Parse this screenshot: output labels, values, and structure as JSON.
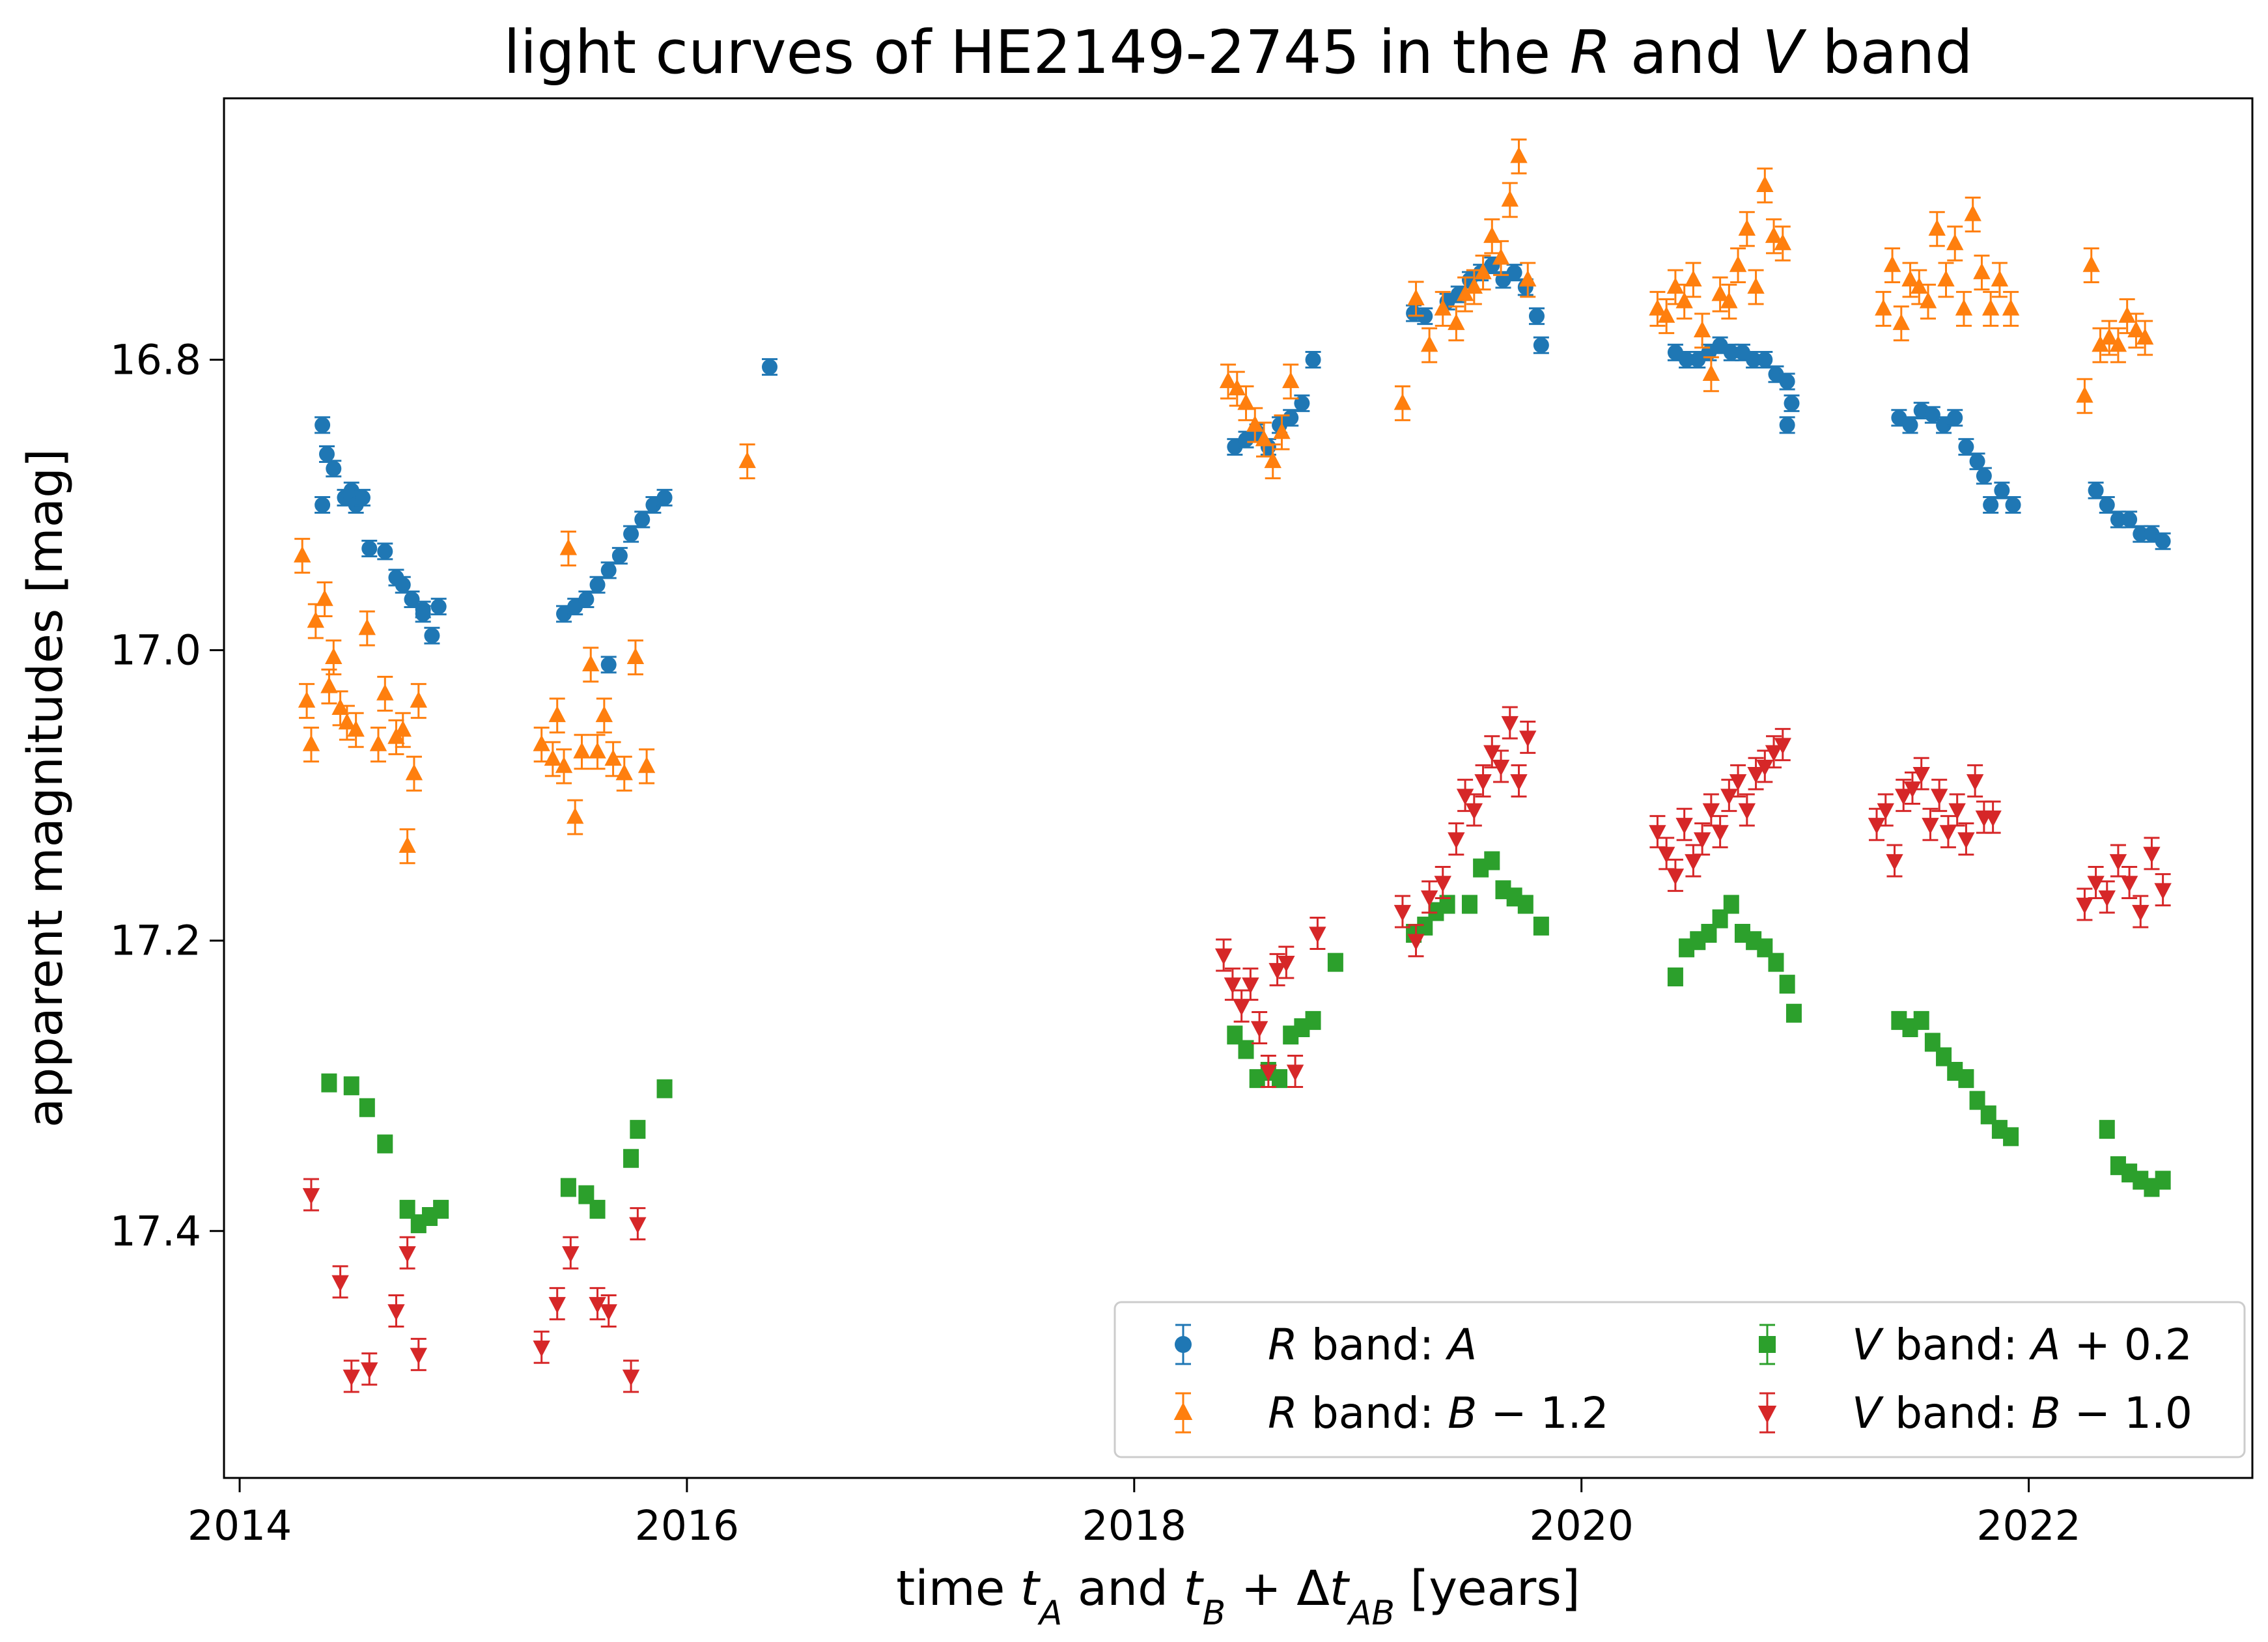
{
  "chart_data": {
    "type": "scatter",
    "title": "light curves of HE2149-2745 in the R and V band",
    "title_parts": [
      {
        "text": "light curves of HE2149-2745 in the ",
        "italic": false
      },
      {
        "text": "R",
        "italic": true
      },
      {
        "text": " and ",
        "italic": false
      },
      {
        "text": "V",
        "italic": true
      },
      {
        "text": " band",
        "italic": false
      }
    ],
    "xlabel": "time t_A and t_B + Δt_AB [years]",
    "xlabel_parts": [
      {
        "text": "time ",
        "italic": false
      },
      {
        "text": "t",
        "italic": true
      },
      {
        "text": "A",
        "italic": true,
        "sub": true
      },
      {
        "text": " and ",
        "italic": false
      },
      {
        "text": "t",
        "italic": true
      },
      {
        "text": "B",
        "italic": true,
        "sub": true
      },
      {
        "text": " + Δ",
        "italic": false
      },
      {
        "text": "t",
        "italic": true
      },
      {
        "text": "AB",
        "italic": true,
        "sub": true
      },
      {
        "text": " [years]",
        "italic": false
      }
    ],
    "ylabel": "apparent magnitudes [mag]",
    "xlim": [
      2013.93,
      2023.0
    ],
    "ylim": [
      17.57,
      16.62
    ],
    "y_inverted": true,
    "x_ticks": [
      2014,
      2016,
      2018,
      2020,
      2022
    ],
    "x_tick_labels": [
      "2014",
      "2016",
      "2018",
      "2020",
      "2022"
    ],
    "y_ticks": [
      16.8,
      17.0,
      17.2,
      17.4
    ],
    "y_tick_labels": [
      "16.8",
      "17.0",
      "17.2",
      "17.4"
    ],
    "grid": false,
    "legend_position": "lower-right",
    "legend_columns": 2,
    "series": [
      {
        "name": "R band: A",
        "name_parts": [
          {
            "text": "R",
            "italic": true
          },
          {
            "text": " band: ",
            "italic": false
          },
          {
            "text": "A",
            "italic": true
          }
        ],
        "color": "#1f77b4",
        "marker": "circle",
        "x": [
          2014.37,
          2014.39,
          2014.37,
          2014.42,
          2014.47,
          2014.5,
          2014.52,
          2014.55,
          2014.58,
          2014.65,
          2014.7,
          2014.73,
          2014.77,
          2014.82,
          2014.86,
          2014.82,
          2014.89,
          2015.45,
          2015.5,
          2015.55,
          2015.6,
          2015.65,
          2015.7,
          2015.75,
          2015.8,
          2015.65,
          2015.85,
          2015.9,
          2016.37,
          2018.45,
          2018.5,
          2018.55,
          2018.6,
          2018.65,
          2018.7,
          2018.75,
          2018.8,
          2019.25,
          2019.3,
          2019.4,
          2019.45,
          2019.5,
          2019.55,
          2019.6,
          2019.65,
          2019.7,
          2019.75,
          2019.8,
          2019.82,
          2020.42,
          2020.47,
          2020.52,
          2020.57,
          2020.62,
          2020.67,
          2020.72,
          2020.77,
          2020.82,
          2020.87,
          2020.92,
          2020.92,
          2020.94,
          2021.42,
          2021.47,
          2021.52,
          2021.57,
          2021.62,
          2021.67,
          2021.72,
          2021.77,
          2021.8,
          2021.83,
          2021.88,
          2021.93,
          2022.3,
          2022.35,
          2022.4,
          2022.45,
          2022.5,
          2022.55,
          2022.6
        ],
        "y": [
          16.845,
          16.865,
          16.9,
          16.875,
          16.895,
          16.89,
          16.9,
          16.895,
          16.93,
          16.932,
          16.95,
          16.955,
          16.965,
          16.972,
          16.99,
          16.975,
          16.97,
          16.975,
          16.97,
          16.965,
          16.955,
          16.945,
          16.935,
          16.92,
          16.91,
          17.01,
          16.9,
          16.895,
          16.805,
          16.86,
          16.855,
          16.85,
          16.86,
          16.845,
          16.84,
          16.83,
          16.8,
          16.768,
          16.77,
          16.76,
          16.755,
          16.745,
          16.74,
          16.735,
          16.745,
          16.74,
          16.75,
          16.77,
          16.79,
          16.795,
          16.8,
          16.8,
          16.795,
          16.79,
          16.795,
          16.795,
          16.8,
          16.8,
          16.81,
          16.815,
          16.845,
          16.83,
          16.84,
          16.845,
          16.835,
          16.838,
          16.845,
          16.84,
          16.86,
          16.87,
          16.88,
          16.9,
          16.89,
          16.9,
          16.89,
          16.9,
          16.91,
          16.91,
          16.92,
          16.92,
          16.925
        ]
      },
      {
        "name": "R band: B − 1.2",
        "name_parts": [
          {
            "text": "R",
            "italic": true
          },
          {
            "text": " band: ",
            "italic": false
          },
          {
            "text": "B",
            "italic": true
          },
          {
            "text": " − 1.2",
            "italic": false
          }
        ],
        "color": "#ff7f0e",
        "marker": "triangle-up",
        "x": [
          2014.28,
          2014.3,
          2014.32,
          2014.34,
          2014.38,
          2014.4,
          2014.42,
          2014.45,
          2014.48,
          2014.52,
          2014.57,
          2014.62,
          2014.65,
          2014.7,
          2014.73,
          2014.75,
          2014.78,
          2014.8,
          2015.35,
          2015.4,
          2015.42,
          2015.45,
          2015.47,
          2015.5,
          2015.53,
          2015.57,
          2015.6,
          2015.63,
          2015.67,
          2015.72,
          2015.77,
          2015.82,
          2016.27,
          2018.42,
          2018.46,
          2018.5,
          2018.54,
          2018.58,
          2018.62,
          2018.66,
          2018.7,
          2019.2,
          2019.26,
          2019.32,
          2019.38,
          2019.44,
          2019.48,
          2019.52,
          2019.56,
          2019.6,
          2019.64,
          2019.68,
          2019.72,
          2019.76,
          2020.34,
          2020.38,
          2020.42,
          2020.46,
          2020.5,
          2020.54,
          2020.58,
          2020.62,
          2020.66,
          2020.7,
          2020.74,
          2020.78,
          2020.82,
          2020.86,
          2020.9,
          2021.35,
          2021.39,
          2021.43,
          2021.47,
          2021.51,
          2021.55,
          2021.59,
          2021.63,
          2021.67,
          2021.71,
          2021.75,
          2021.79,
          2021.83,
          2021.87,
          2021.92,
          2022.25,
          2022.28,
          2022.32,
          2022.36,
          2022.4,
          2022.44,
          2022.48,
          2022.52
        ],
        "y": [
          16.935,
          17.035,
          17.065,
          16.98,
          16.965,
          17.025,
          17.005,
          17.04,
          17.05,
          17.055,
          16.985,
          17.065,
          17.03,
          17.06,
          17.055,
          17.135,
          17.085,
          17.035,
          17.065,
          17.075,
          17.045,
          17.08,
          16.93,
          17.115,
          17.07,
          17.01,
          17.07,
          17.045,
          17.075,
          17.085,
          17.005,
          17.08,
          16.87,
          16.815,
          16.82,
          16.83,
          16.845,
          16.855,
          16.87,
          16.85,
          16.815,
          16.83,
          16.758,
          16.79,
          16.765,
          16.775,
          16.755,
          16.75,
          16.74,
          16.715,
          16.73,
          16.69,
          16.66,
          16.745,
          16.765,
          16.77,
          16.75,
          16.76,
          16.745,
          16.78,
          16.81,
          16.755,
          16.76,
          16.735,
          16.71,
          16.75,
          16.68,
          16.715,
          16.72,
          16.765,
          16.735,
          16.775,
          16.745,
          16.75,
          16.76,
          16.71,
          16.745,
          16.72,
          16.765,
          16.7,
          16.74,
          16.765,
          16.745,
          16.765,
          16.825,
          16.735,
          16.79,
          16.785,
          16.79,
          16.77,
          16.78,
          16.785
        ]
      },
      {
        "name": "V band: A + 0.2",
        "name_parts": [
          {
            "text": "V",
            "italic": true
          },
          {
            "text": " band: ",
            "italic": false
          },
          {
            "text": "A",
            "italic": true
          },
          {
            "text": " + 0.2",
            "italic": false
          }
        ],
        "color": "#2ca02c",
        "marker": "square",
        "x": [
          2014.4,
          2014.5,
          2014.57,
          2014.65,
          2014.75,
          2014.8,
          2014.85,
          2014.9,
          2015.47,
          2015.55,
          2015.6,
          2015.75,
          2015.78,
          2015.9,
          2018.45,
          2018.5,
          2018.55,
          2018.6,
          2018.65,
          2018.7,
          2018.75,
          2018.8,
          2018.9,
          2019.25,
          2019.3,
          2019.35,
          2019.4,
          2019.5,
          2019.55,
          2019.6,
          2019.65,
          2019.7,
          2019.75,
          2019.82,
          2020.42,
          2020.47,
          2020.52,
          2020.57,
          2020.62,
          2020.67,
          2020.72,
          2020.77,
          2020.82,
          2020.87,
          2020.92,
          2020.95,
          2021.42,
          2021.47,
          2021.52,
          2021.57,
          2021.62,
          2021.67,
          2021.72,
          2021.77,
          2021.82,
          2021.87,
          2021.92,
          2022.35,
          2022.4,
          2022.45,
          2022.5,
          2022.55,
          2022.6
        ],
        "y": [
          17.298,
          17.3,
          17.315,
          17.34,
          17.385,
          17.395,
          17.39,
          17.385,
          17.37,
          17.375,
          17.385,
          17.35,
          17.33,
          17.302,
          17.265,
          17.275,
          17.295,
          17.29,
          17.295,
          17.265,
          17.26,
          17.255,
          17.215,
          17.195,
          17.19,
          17.18,
          17.175,
          17.175,
          17.15,
          17.145,
          17.165,
          17.17,
          17.175,
          17.19,
          17.225,
          17.205,
          17.2,
          17.195,
          17.185,
          17.175,
          17.195,
          17.2,
          17.205,
          17.215,
          17.23,
          17.25,
          17.255,
          17.26,
          17.255,
          17.27,
          17.28,
          17.29,
          17.295,
          17.31,
          17.32,
          17.33,
          17.335,
          17.33,
          17.355,
          17.36,
          17.365,
          17.37,
          17.365
        ]
      },
      {
        "name": "V band: B − 1.0",
        "name_parts": [
          {
            "text": "V",
            "italic": true
          },
          {
            "text": " band: ",
            "italic": false
          },
          {
            "text": "B",
            "italic": true
          },
          {
            "text": " − 1.0",
            "italic": false
          }
        ],
        "color": "#d62728",
        "marker": "triangle-down",
        "x": [
          2014.32,
          2014.45,
          2014.5,
          2014.58,
          2014.7,
          2014.75,
          2014.8,
          2015.35,
          2015.42,
          2015.48,
          2015.6,
          2015.65,
          2015.75,
          2015.78,
          2018.4,
          2018.44,
          2018.48,
          2018.52,
          2018.56,
          2018.6,
          2018.64,
          2018.68,
          2018.72,
          2018.82,
          2019.2,
          2019.26,
          2019.32,
          2019.38,
          2019.44,
          2019.48,
          2019.52,
          2019.56,
          2019.6,
          2019.64,
          2019.68,
          2019.72,
          2019.76,
          2020.34,
          2020.38,
          2020.42,
          2020.46,
          2020.5,
          2020.54,
          2020.58,
          2020.62,
          2020.66,
          2020.7,
          2020.74,
          2020.78,
          2020.82,
          2020.86,
          2020.9,
          2021.32,
          2021.36,
          2021.4,
          2021.44,
          2021.48,
          2021.52,
          2021.56,
          2021.6,
          2021.64,
          2021.68,
          2021.72,
          2021.76,
          2021.8,
          2021.84,
          2022.25,
          2022.3,
          2022.35,
          2022.4,
          2022.45,
          2022.5,
          2022.55,
          2022.6
        ],
        "y": [
          17.375,
          17.435,
          17.5,
          17.495,
          17.455,
          17.415,
          17.485,
          17.48,
          17.45,
          17.415,
          17.45,
          17.455,
          17.5,
          17.395,
          17.21,
          17.23,
          17.245,
          17.23,
          17.26,
          17.29,
          17.22,
          17.215,
          17.29,
          17.195,
          17.18,
          17.2,
          17.17,
          17.16,
          17.13,
          17.1,
          17.11,
          17.09,
          17.07,
          17.08,
          17.05,
          17.09,
          17.06,
          17.125,
          17.14,
          17.155,
          17.12,
          17.145,
          17.13,
          17.11,
          17.125,
          17.1,
          17.09,
          17.11,
          17.085,
          17.08,
          17.07,
          17.065,
          17.12,
          17.11,
          17.145,
          17.1,
          17.095,
          17.085,
          17.12,
          17.1,
          17.125,
          17.11,
          17.13,
          17.09,
          17.115,
          17.115,
          17.175,
          17.16,
          17.17,
          17.145,
          17.16,
          17.18,
          17.14,
          17.165
        ]
      }
    ]
  }
}
